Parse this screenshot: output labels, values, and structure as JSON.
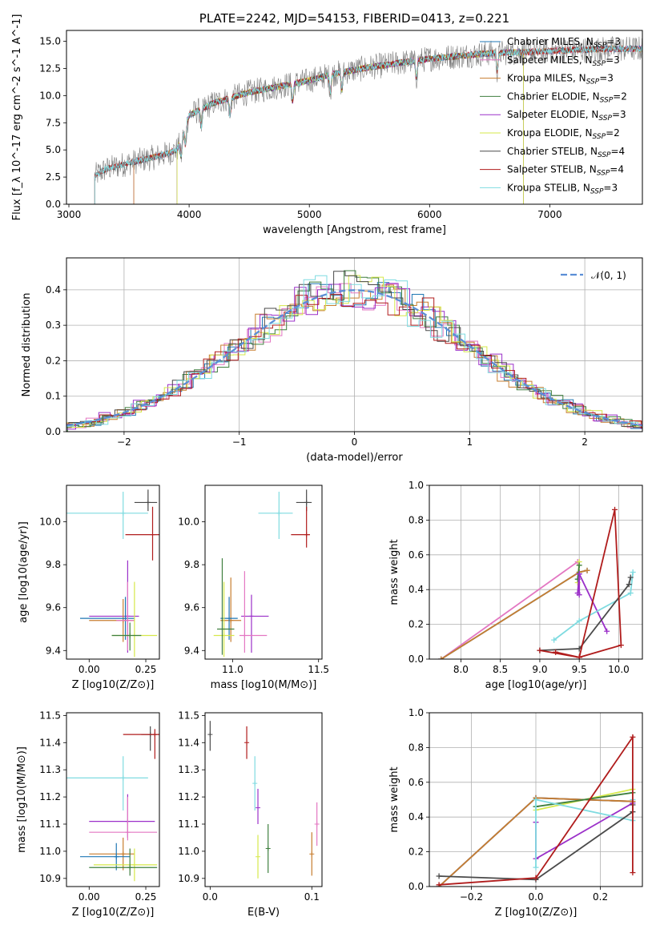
{
  "figure": {
    "title": "PLATE=2242, MJD=54153, FIBERID=0413, z=0.221"
  },
  "colors": {
    "Chabrier MILES": "#1f77b4",
    "Salpeter MILES": "#e377c2",
    "Kroupa MILES": "#c77d2f",
    "Chabrier ELODIE": "#3f7f3f",
    "Salpeter ELODIE": "#9b30c9",
    "Kroupa ELODIE": "#d6e84a",
    "Chabrier STELIB": "#4a4a4a",
    "Salpeter STELIB": "#b01c1c",
    "Kroupa STELIB": "#7fdbe0",
    "gaussian": "#5b8ed6",
    "spectrum_gray": "#7f7f7f",
    "grid": "#b0b0b0"
  },
  "chart_data": [
    {
      "id": "spectrum",
      "type": "line",
      "title": "PLATE=2242, MJD=54153, FIBERID=0413, z=0.221",
      "xlabel": "wavelength [Angstrom, rest frame]",
      "ylabel": "Flux [f_λ 10^-17 erg cm^-2 s^-1 A^-1]",
      "xlim": [
        2980,
        7770
      ],
      "ylim": [
        0,
        16
      ],
      "xticks": [
        3000,
        4000,
        5000,
        6000,
        7000
      ],
      "yticks": [
        0.0,
        2.5,
        5.0,
        7.5,
        10.0,
        12.5,
        15.0
      ],
      "grid": false,
      "legend_position": "right",
      "spectrum_start": 3215,
      "spectrum_end": 7770,
      "continuum": {
        "x": [
          3215,
          3300,
          3500,
          3700,
          3800,
          3900,
          3950,
          4000,
          4200,
          4500,
          5000,
          5200,
          5500,
          6000,
          6500,
          7000,
          7500,
          7770
        ],
        "y": [
          2.6,
          3.2,
          3.8,
          4.3,
          4.6,
          5.0,
          6.5,
          8.2,
          9.3,
          10.3,
          11.4,
          12.0,
          12.6,
          13.4,
          13.9,
          14.1,
          14.3,
          14.3
        ]
      },
      "series": [
        {
          "name": "Chabrier MILES, N_SSP=3",
          "start": 3540,
          "end": 7770
        },
        {
          "name": "Salpeter MILES, N_SSP=3",
          "start": 3540,
          "end": 7770
        },
        {
          "name": "Kroupa MILES, N_SSP=3",
          "start": 3540,
          "end": 7770
        },
        {
          "name": "Chabrier ELODIE, N_SSP=2",
          "start": 3900,
          "end": 6780
        },
        {
          "name": "Salpeter ELODIE, N_SSP=3",
          "start": 3900,
          "end": 6780
        },
        {
          "name": "Kroupa ELODIE, N_SSP=2",
          "start": 3900,
          "end": 6780
        },
        {
          "name": "Chabrier STELIB, N_SSP=4",
          "start": 3215,
          "end": 7770
        },
        {
          "name": "Salpeter STELIB, N_SSP=4",
          "start": 3215,
          "end": 7770
        },
        {
          "name": "Kroupa STELIB, N_SSP=3",
          "start": 3215,
          "end": 7770
        }
      ]
    },
    {
      "id": "residuals",
      "type": "line",
      "xlabel": "(data-model)/error",
      "ylabel": "Normed distribution",
      "xlim": [
        -2.5,
        2.5
      ],
      "ylim": [
        0,
        0.49
      ],
      "xticks": [
        -2,
        -1,
        0,
        1,
        2
      ],
      "yticks": [
        0.0,
        0.1,
        0.2,
        0.3,
        0.4
      ],
      "grid": true,
      "legend_position": "top-right",
      "legend_label": "𝒩(0, 1)",
      "gaussian": {
        "mu": 0,
        "sigma": 1
      }
    },
    {
      "id": "age-vs-Z",
      "type": "scatter",
      "xlabel": "Z [log10(Z/Z⊙)]",
      "ylabel": "age [log10(age/yr)]",
      "xlim": [
        -0.1,
        0.31
      ],
      "ylim": [
        9.36,
        10.17
      ],
      "xticks": [
        0.0,
        0.25
      ],
      "yticks": [
        9.4,
        9.6,
        9.8,
        10.0
      ],
      "grid": false,
      "points": [
        {
          "s": "Kroupa STELIB",
          "x": 0.15,
          "xe": [
            0.25,
            0.11
          ],
          "y": 10.04,
          "ye": [
            0.12,
            0.1
          ]
        },
        {
          "s": "Chabrier STELIB",
          "x": 0.26,
          "xe": [
            0.06,
            0.04
          ],
          "y": 10.09,
          "ye": [
            0.04,
            0.06
          ]
        },
        {
          "s": "Salpeter STELIB",
          "x": 0.28,
          "xe": [
            0.12,
            0.03
          ],
          "y": 9.94,
          "ye": [
            0.12,
            0.13
          ]
        },
        {
          "s": "Salpeter ELODIE",
          "x": 0.17,
          "xe": [
            0.17,
            0.05
          ],
          "y": 9.56,
          "ye": [
            0.17,
            0.26
          ]
        },
        {
          "s": "Kroupa MILES",
          "x": 0.15,
          "xe": [
            0.15,
            0.05
          ],
          "y": 9.54,
          "ye": [
            0.1,
            0.1
          ]
        },
        {
          "s": "Chabrier MILES",
          "x": 0.16,
          "xe": [
            0.2,
            0.04
          ],
          "y": 9.55,
          "ye": [
            0.1,
            0.1
          ]
        },
        {
          "s": "Salpeter MILES",
          "x": 0.17,
          "xe": [
            0.05,
            0.03
          ],
          "y": 9.54,
          "ye": [
            0.14,
            0.18
          ]
        },
        {
          "s": "Kroupa ELODIE",
          "x": 0.2,
          "xe": [
            0.1,
            0.1
          ],
          "y": 9.47,
          "ye": [
            0.1,
            0.25
          ]
        },
        {
          "s": "Chabrier ELODIE",
          "x": 0.18,
          "xe": [
            0.08,
            0.05
          ],
          "y": 9.47,
          "ye": [
            0.07,
            0.06
          ]
        }
      ]
    },
    {
      "id": "age-vs-mass",
      "type": "scatter",
      "xlabel": "mass [log10(M/M⊙)]",
      "ylabel": "",
      "xlim": [
        10.84,
        11.52
      ],
      "ylim": [
        9.36,
        10.17
      ],
      "xticks": [
        11.0,
        11.5
      ],
      "yticks": [
        9.4,
        9.6,
        9.8,
        10.0
      ],
      "grid": false,
      "points": [
        {
          "s": "Kroupa STELIB",
          "x": 11.27,
          "xe": [
            0.12,
            0.08
          ],
          "y": 10.04,
          "ye": [
            0.12,
            0.1
          ]
        },
        {
          "s": "Chabrier STELIB",
          "x": 11.43,
          "xe": [
            0.06,
            0.03
          ],
          "y": 10.09,
          "ye": [
            0.04,
            0.06
          ]
        },
        {
          "s": "Salpeter STELIB",
          "x": 11.43,
          "xe": [
            0.09,
            0.02
          ],
          "y": 9.94,
          "ye": [
            0.06,
            0.13
          ]
        },
        {
          "s": "Salpeter ELODIE",
          "x": 11.11,
          "xe": [
            0.06,
            0.1
          ],
          "y": 9.56,
          "ye": [
            0.17,
            0.1
          ]
        },
        {
          "s": "Kroupa MILES",
          "x": 10.99,
          "xe": [
            0.06,
            0.06
          ],
          "y": 9.54,
          "ye": [
            0.1,
            0.2
          ]
        },
        {
          "s": "Chabrier MILES",
          "x": 10.98,
          "xe": [
            0.05,
            0.05
          ],
          "y": 9.55,
          "ye": [
            0.1,
            0.1
          ]
        },
        {
          "s": "Salpeter MILES",
          "x": 11.07,
          "xe": [
            0.03,
            0.13
          ],
          "y": 9.47,
          "ye": [
            0.08,
            0.3
          ]
        },
        {
          "s": "Kroupa ELODIE",
          "x": 10.95,
          "xe": [
            0.06,
            0.06
          ],
          "y": 9.47,
          "ye": [
            0.1,
            0.25
          ]
        },
        {
          "s": "Chabrier ELODIE",
          "x": 10.94,
          "xe": [
            0.03,
            0.07
          ],
          "y": 9.5,
          "ye": [
            0.12,
            0.33
          ]
        }
      ]
    },
    {
      "id": "weight-vs-age",
      "type": "line",
      "xlabel": "age [log10(age/yr)]",
      "ylabel": "mass weight",
      "xlim": [
        7.6,
        10.3
      ],
      "ylim": [
        0,
        1
      ],
      "xticks": [
        8.0,
        8.5,
        9.0,
        9.5,
        10.0
      ],
      "yticks": [
        0.0,
        0.2,
        0.4,
        0.6,
        0.8,
        1.0
      ],
      "grid": true,
      "series": [
        {
          "s": "Salpeter MILES",
          "x": [
            7.75,
            9.48
          ],
          "y": [
            0.0,
            0.56
          ]
        },
        {
          "s": "Chabrier MILES",
          "x": [
            7.75,
            9.5,
            9.6
          ],
          "y": [
            0.0,
            0.5,
            0.51
          ]
        },
        {
          "s": "Kroupa MILES",
          "x": [
            7.75,
            9.5,
            9.6
          ],
          "y": [
            0.0,
            0.5,
            0.51
          ]
        },
        {
          "s": "Kroupa ELODIE",
          "x": [
            9.48,
            9.5
          ],
          "y": [
            0.44,
            0.56
          ]
        },
        {
          "s": "Chabrier ELODIE",
          "x": [
            9.48,
            9.5
          ],
          "y": [
            0.46,
            0.54
          ]
        },
        {
          "s": "Salpeter ELODIE",
          "x": [
            9.48,
            9.5,
            9.85,
            9.5,
            9.5
          ],
          "y": [
            0.38,
            0.49,
            0.16,
            0.49,
            0.37
          ]
        },
        {
          "s": "Kroupa STELIB",
          "x": [
            9.18,
            9.5,
            10.15,
            10.18
          ],
          "y": [
            0.11,
            0.22,
            0.38,
            0.5
          ]
        },
        {
          "s": "Chabrier STELIB",
          "x": [
            9.0,
            9.5,
            10.13,
            10.15
          ],
          "y": [
            0.05,
            0.06,
            0.43,
            0.47
          ]
        },
        {
          "s": "Salpeter STELIB",
          "x": [
            9.0,
            9.5,
            9.95,
            10.03,
            9.5,
            9.2
          ],
          "y": [
            0.05,
            0.01,
            0.86,
            0.08,
            0.01,
            0.04
          ]
        }
      ]
    },
    {
      "id": "mass-vs-Z",
      "type": "scatter",
      "xlabel": "Z [log10(Z/Z⊙)]",
      "ylabel": "mass [log10(M/M⊙)]",
      "xlim": [
        -0.1,
        0.31
      ],
      "ylim": [
        10.87,
        11.51
      ],
      "xticks": [
        0.0,
        0.25
      ],
      "yticks": [
        10.9,
        11.0,
        11.1,
        11.2,
        11.3,
        11.4,
        11.5
      ],
      "grid": false,
      "points": [
        {
          "s": "Kroupa STELIB",
          "x": 0.15,
          "xe": [
            0.25,
            0.11
          ],
          "y": 11.27,
          "ye": [
            0.12,
            0.08
          ]
        },
        {
          "s": "Chabrier STELIB",
          "x": 0.27,
          "xe": [
            0.04,
            0.03
          ],
          "y": 11.43,
          "ye": [
            0.06,
            0.03
          ]
        },
        {
          "s": "Salpeter STELIB",
          "x": 0.29,
          "xe": [
            0.14,
            0.02
          ],
          "y": 11.43,
          "ye": [
            0.09,
            0.02
          ]
        },
        {
          "s": "Salpeter ELODIE",
          "x": 0.17,
          "xe": [
            0.17,
            0.12
          ],
          "y": 11.11,
          "ye": [
            0.06,
            0.1
          ]
        },
        {
          "s": "Kroupa MILES",
          "x": 0.15,
          "xe": [
            0.15,
            0.05
          ],
          "y": 10.99,
          "ye": [
            0.06,
            0.06
          ]
        },
        {
          "s": "Chabrier MILES",
          "x": 0.12,
          "xe": [
            0.16,
            0.06
          ],
          "y": 10.98,
          "ye": [
            0.05,
            0.05
          ]
        },
        {
          "s": "Salpeter MILES",
          "x": 0.17,
          "xe": [
            0.17,
            0.13
          ],
          "y": 11.07,
          "ye": [
            0.03,
            0.13
          ]
        },
        {
          "s": "Kroupa ELODIE",
          "x": 0.2,
          "xe": [
            0.18,
            0.1
          ],
          "y": 10.95,
          "ye": [
            0.06,
            0.06
          ]
        },
        {
          "s": "Chabrier ELODIE",
          "x": 0.18,
          "xe": [
            0.18,
            0.12
          ],
          "y": 10.94,
          "ye": [
            0.03,
            0.07
          ]
        }
      ]
    },
    {
      "id": "mass-vs-EBV",
      "type": "scatter",
      "xlabel": "E(B-V)",
      "ylabel": "",
      "xlim": [
        -0.005,
        0.11
      ],
      "ylim": [
        10.87,
        11.51
      ],
      "xticks": [
        0.0,
        0.1
      ],
      "yticks": [
        10.9,
        11.0,
        11.1,
        11.2,
        11.3,
        11.4,
        11.5
      ],
      "grid": false,
      "points": [
        {
          "s": "Chabrier STELIB",
          "x": 0.0,
          "xe": [
            0,
            0
          ],
          "y": 11.43,
          "ye": [
            0.06,
            0.05
          ]
        },
        {
          "s": "Salpeter STELIB",
          "x": 0.036,
          "xe": [
            0,
            0
          ],
          "y": 11.4,
          "ye": [
            0.06,
            0.06
          ]
        },
        {
          "s": "Kroupa STELIB",
          "x": 0.044,
          "xe": [
            0,
            0
          ],
          "y": 11.25,
          "ye": [
            0.1,
            0.1
          ]
        },
        {
          "s": "Salpeter ELODIE",
          "x": 0.047,
          "xe": [
            0,
            0
          ],
          "y": 11.16,
          "ye": [
            0.06,
            0.07
          ]
        },
        {
          "s": "Kroupa ELODIE",
          "x": 0.047,
          "xe": [
            0,
            0
          ],
          "y": 10.98,
          "ye": [
            0.08,
            0.08
          ]
        },
        {
          "s": "Chabrier ELODIE",
          "x": 0.057,
          "xe": [
            0,
            0
          ],
          "y": 11.01,
          "ye": [
            0.09,
            0.09
          ]
        },
        {
          "s": "Kroupa MILES",
          "x": 0.1,
          "xe": [
            0,
            0
          ],
          "y": 10.99,
          "ye": [
            0.08,
            0.08
          ]
        },
        {
          "s": "Salpeter MILES",
          "x": 0.105,
          "xe": [
            0,
            0
          ],
          "y": 11.1,
          "ye": [
            0.08,
            0.08
          ]
        }
      ]
    },
    {
      "id": "weight-vs-Z",
      "type": "line",
      "xlabel": "Z [log10(Z/Z⊙)]",
      "ylabel": "mass weight",
      "xlim": [
        -0.33,
        0.33
      ],
      "ylim": [
        0,
        1
      ],
      "xticks": [
        -0.2,
        0.0,
        0.2
      ],
      "yticks": [
        0.0,
        0.2,
        0.4,
        0.6,
        0.8,
        1.0
      ],
      "grid": true,
      "series": [
        {
          "s": "Salpeter MILES",
          "x": [
            -0.3,
            0.0,
            0.3
          ],
          "y": [
            0.0,
            0.51,
            0.49
          ]
        },
        {
          "s": "Chabrier MILES",
          "x": [
            -0.3,
            0.0,
            0.3
          ],
          "y": [
            0.0,
            0.51,
            0.49
          ]
        },
        {
          "s": "Kroupa MILES",
          "x": [
            -0.3,
            0.0,
            0.3
          ],
          "y": [
            0.0,
            0.51,
            0.49
          ]
        },
        {
          "s": "Kroupa ELODIE",
          "x": [
            0.0,
            0.3
          ],
          "y": [
            0.44,
            0.56
          ]
        },
        {
          "s": "Chabrier ELODIE",
          "x": [
            0.0,
            0.3
          ],
          "y": [
            0.46,
            0.54
          ]
        },
        {
          "s": "Salpeter ELODIE",
          "x": [
            0.0,
            0.0,
            0.3
          ],
          "y": [
            0.37,
            0.16,
            0.48
          ]
        },
        {
          "s": "Kroupa STELIB",
          "x": [
            0.0,
            0.0,
            0.3,
            0.3
          ],
          "y": [
            0.11,
            0.5,
            0.38,
            0.5
          ]
        },
        {
          "s": "Chabrier STELIB",
          "x": [
            -0.3,
            0.0,
            0.3,
            0.3
          ],
          "y": [
            0.06,
            0.04,
            0.43,
            0.47
          ]
        },
        {
          "s": "Salpeter STELIB",
          "x": [
            -0.3,
            0.0,
            0.3,
            0.3
          ],
          "y": [
            0.01,
            0.05,
            0.86,
            0.08
          ]
        }
      ]
    }
  ]
}
